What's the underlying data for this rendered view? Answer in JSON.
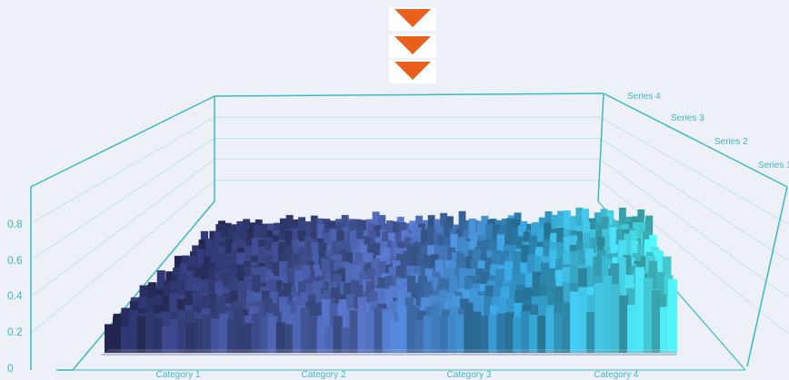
{
  "chart_data": {
    "type": "bar3d",
    "categories": [
      "Category 1",
      "Category 2",
      "Category 3",
      "Category 4"
    ],
    "series": [
      {
        "name": "Series 1"
      },
      {
        "name": "Series 2"
      },
      {
        "name": "Series 3"
      },
      {
        "name": "Series 4"
      }
    ],
    "z_ticks": [
      "0",
      "0.2",
      "0.4",
      "0.6",
      "0.8"
    ],
    "zlim": [
      0,
      1
    ],
    "grid": true,
    "colors": {
      "frame": "#3bb8c4",
      "low": "#2a2f63",
      "mid": "#5a78c0",
      "high": "#44d0d6",
      "arrow": "#e8601c"
    }
  },
  "decor": {
    "arrows": 3,
    "arrow_icon": "down-triangle-icon"
  }
}
